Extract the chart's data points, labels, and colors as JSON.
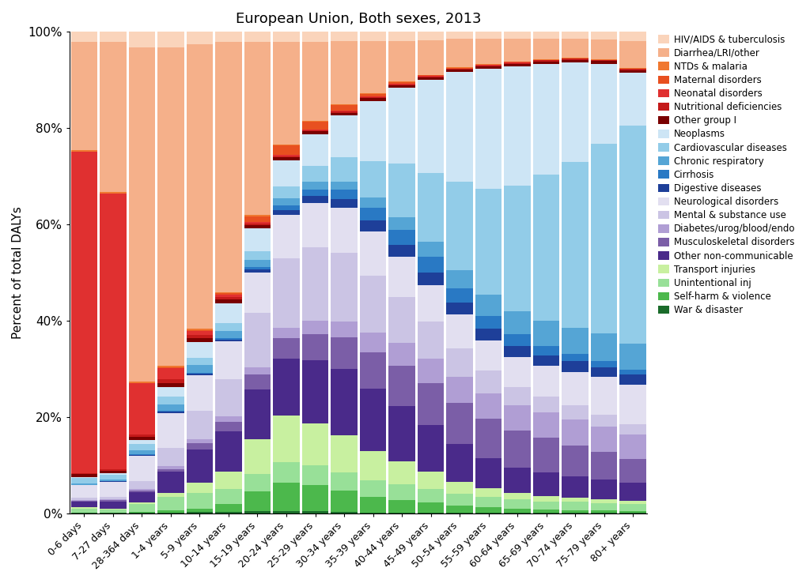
{
  "title": "European Union, Both sexes, 2013",
  "ylabel": "Percent of total DALYs",
  "age_groups": [
    "0-6 days",
    "7-27 days",
    "28-364 days",
    "1-4 years",
    "5-9 years",
    "10-14 years",
    "15-19 years",
    "20-24 years",
    "25-29 years",
    "30-34 years",
    "35-39 years",
    "40-44 years",
    "45-49 years",
    "50-54 years",
    "55-59 years",
    "60-64 years",
    "65-69 years",
    "70-74 years",
    "75-79 years",
    "80+ years"
  ],
  "categories": [
    "War & disaster",
    "Self-harm & violence",
    "Unintentional inj",
    "Transport injuries",
    "Other non-communicable",
    "Musculoskeletal disorders",
    "Diabetes/urog/blood/endo",
    "Mental & substance use",
    "Neurological disorders",
    "Digestive diseases",
    "Cirrhosis",
    "Chronic respiratory",
    "Cardiovascular diseases",
    "Neoplasms",
    "Other group I",
    "Nutritional deficiencies",
    "Neonatal disorders",
    "Maternal disorders",
    "NTDs & malaria",
    "Diarrhea/LRI/other",
    "HIV/AIDS & tuberculosis"
  ],
  "colors": [
    "#1a6b2a",
    "#4cb84c",
    "#98e098",
    "#c8f0a0",
    "#4a2a8a",
    "#7b5ea7",
    "#b09ed4",
    "#cbc4e4",
    "#e2dff0",
    "#1e3f99",
    "#2979c4",
    "#55a5d5",
    "#92cce8",
    "#cde5f5",
    "#7a0000",
    "#c41a1a",
    "#e03030",
    "#e85020",
    "#f07830",
    "#f5b08a",
    "#fad4bb"
  ],
  "data_raw": {
    "War & disaster": [
      0.1,
      0.1,
      0.1,
      0.2,
      0.3,
      0.3,
      0.5,
      0.5,
      0.4,
      0.3,
      0.2,
      0.2,
      0.2,
      0.1,
      0.1,
      0.1,
      0.1,
      0.1,
      0.1,
      0.1
    ],
    "Self-harm & violence": [
      0.1,
      0.1,
      0.2,
      0.4,
      0.6,
      1.5,
      4.0,
      5.5,
      5.0,
      4.0,
      3.0,
      2.5,
      2.0,
      1.5,
      1.2,
      0.9,
      0.7,
      0.6,
      0.5,
      0.4
    ],
    "Unintentional inj": [
      0.8,
      0.5,
      1.5,
      2.5,
      3.0,
      3.0,
      3.5,
      4.0,
      3.8,
      3.5,
      3.2,
      3.0,
      2.8,
      2.5,
      2.2,
      2.0,
      1.8,
      1.7,
      1.5,
      1.3
    ],
    "Transport injuries": [
      0.3,
      0.2,
      0.3,
      0.8,
      2.0,
      3.5,
      7.0,
      9.0,
      8.0,
      7.0,
      5.5,
      4.5,
      3.5,
      2.5,
      2.0,
      1.5,
      1.2,
      0.9,
      0.7,
      0.5
    ],
    "Other non-communicable": [
      1.0,
      1.5,
      2.0,
      4.0,
      6.5,
      8.0,
      10.0,
      11.0,
      12.0,
      12.5,
      12.0,
      11.0,
      9.5,
      8.0,
      6.5,
      5.5,
      5.0,
      4.5,
      4.0,
      3.5
    ],
    "Musculoskeletal disorders": [
      0.2,
      0.2,
      0.3,
      0.5,
      1.2,
      2.0,
      3.0,
      4.0,
      5.0,
      6.0,
      7.0,
      8.0,
      8.5,
      8.5,
      8.5,
      8.0,
      7.5,
      6.5,
      5.5,
      4.5
    ],
    "Diabetes/urog/blood/endo": [
      0.2,
      0.2,
      0.3,
      0.5,
      0.7,
      1.0,
      1.5,
      2.0,
      2.5,
      3.0,
      3.8,
      4.5,
      5.0,
      5.5,
      5.5,
      5.5,
      5.5,
      5.5,
      5.0,
      4.5
    ],
    "Mental & substance use": [
      0.5,
      0.5,
      1.5,
      3.5,
      5.5,
      7.5,
      11.0,
      13.5,
      14.0,
      13.0,
      11.0,
      9.0,
      7.5,
      6.0,
      5.0,
      4.0,
      3.5,
      3.0,
      2.5,
      2.0
    ],
    "Neurological disorders": [
      2.5,
      3.0,
      5.0,
      6.5,
      7.0,
      7.5,
      8.0,
      8.5,
      8.5,
      8.5,
      8.5,
      8.0,
      7.5,
      7.0,
      6.5,
      6.5,
      6.5,
      7.0,
      7.5,
      7.5
    ],
    "Digestive diseases": [
      0.1,
      0.1,
      0.2,
      0.3,
      0.3,
      0.4,
      0.7,
      1.0,
      1.3,
      1.7,
      2.0,
      2.3,
      2.5,
      2.5,
      2.5,
      2.5,
      2.3,
      2.2,
      2.0,
      1.8
    ],
    "Cirrhosis": [
      0.0,
      0.0,
      0.1,
      0.1,
      0.1,
      0.2,
      0.4,
      0.8,
      1.2,
      1.8,
      2.5,
      3.0,
      3.2,
      3.0,
      2.8,
      2.5,
      2.0,
      1.5,
      1.2,
      0.9
    ],
    "Chronic respiratory": [
      0.3,
      0.3,
      0.8,
      1.2,
      1.5,
      1.5,
      1.5,
      1.5,
      1.5,
      1.5,
      2.0,
      2.5,
      3.0,
      3.8,
      4.5,
      5.0,
      5.5,
      5.5,
      5.5,
      5.0
    ],
    "Cardiovascular diseases": [
      1.0,
      1.0,
      1.2,
      1.5,
      1.5,
      1.5,
      1.8,
      2.3,
      3.0,
      4.5,
      7.0,
      10.5,
      14.0,
      18.5,
      23.0,
      27.5,
      31.5,
      35.0,
      38.0,
      41.0
    ],
    "Neoplasms": [
      0.3,
      0.3,
      0.8,
      1.8,
      3.0,
      4.0,
      4.5,
      5.0,
      6.0,
      8.0,
      11.5,
      15.0,
      19.0,
      23.0,
      26.0,
      26.0,
      24.0,
      21.0,
      16.0,
      10.0
    ],
    "Other group I": [
      0.5,
      0.5,
      0.5,
      0.8,
      0.8,
      0.8,
      0.7,
      0.6,
      0.6,
      0.5,
      0.5,
      0.5,
      0.5,
      0.5,
      0.5,
      0.5,
      0.5,
      0.5,
      0.5,
      0.5
    ],
    "Nutritional deficiencies": [
      0.3,
      0.3,
      0.5,
      0.8,
      0.6,
      0.4,
      0.3,
      0.2,
      0.2,
      0.2,
      0.2,
      0.2,
      0.2,
      0.2,
      0.2,
      0.2,
      0.2,
      0.2,
      0.2,
      0.2
    ],
    "Neonatal disorders": [
      65.0,
      55.0,
      10.0,
      2.0,
      0.8,
      0.5,
      0.3,
      0.3,
      0.2,
      0.2,
      0.2,
      0.2,
      0.1,
      0.1,
      0.1,
      0.1,
      0.1,
      0.1,
      0.1,
      0.1
    ],
    "Maternal disorders": [
      0.0,
      0.0,
      0.0,
      0.1,
      0.1,
      0.3,
      1.2,
      1.8,
      1.5,
      1.0,
      0.5,
      0.3,
      0.1,
      0.1,
      0.1,
      0.1,
      0.0,
      0.0,
      0.0,
      0.0
    ],
    "NTDs & malaria": [
      0.2,
      0.2,
      0.3,
      0.4,
      0.3,
      0.2,
      0.2,
      0.1,
      0.1,
      0.1,
      0.1,
      0.1,
      0.1,
      0.1,
      0.1,
      0.1,
      0.1,
      0.1,
      0.1,
      0.1
    ],
    "Diarrhea/LRI/other": [
      22.0,
      30.0,
      65.0,
      60.0,
      55.0,
      50.0,
      35.0,
      20.0,
      15.0,
      12.0,
      10.0,
      8.0,
      7.0,
      6.0,
      5.5,
      5.0,
      4.5,
      4.0,
      4.0,
      5.0
    ],
    "HIV/AIDS & tuberculosis": [
      2.0,
      2.0,
      3.0,
      3.0,
      2.5,
      2.0,
      2.0,
      2.0,
      2.0,
      1.8,
      1.8,
      1.8,
      1.8,
      1.5,
      1.5,
      1.5,
      1.5,
      1.5,
      1.5,
      1.8
    ]
  }
}
